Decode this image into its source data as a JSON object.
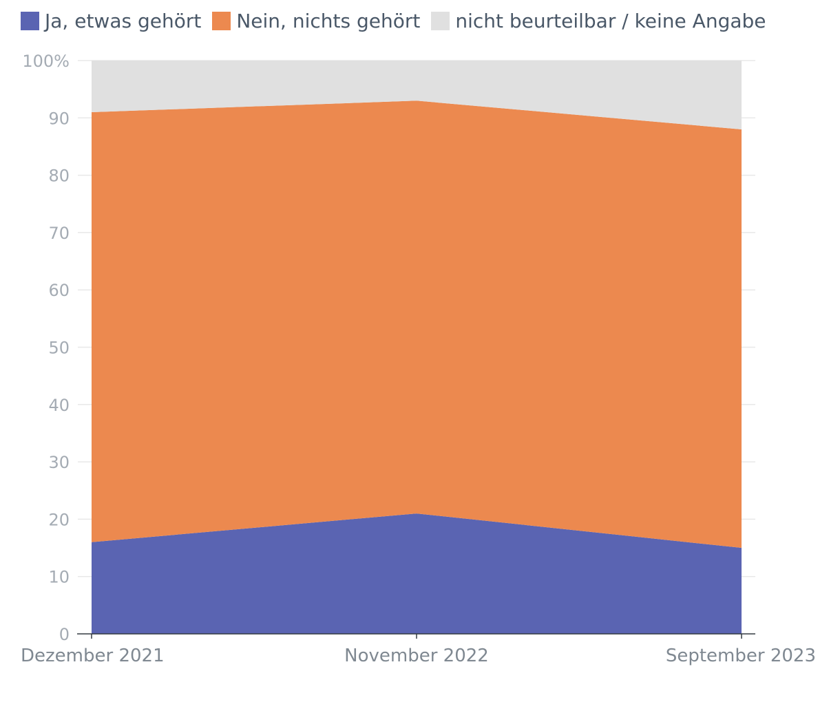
{
  "chart_data": {
    "type": "area",
    "stacking": "percent",
    "categories": [
      "Dezember 2021",
      "November 2022",
      "September 2023"
    ],
    "series": [
      {
        "name": "Ja, etwas gehört",
        "color": "#5a64b2",
        "values": [
          16,
          21,
          15
        ]
      },
      {
        "name": "Nein, nichts gehört",
        "color": "#ec894f",
        "values": [
          75,
          72,
          73
        ]
      },
      {
        "name": "nicht beurteilbar / keine Angabe",
        "color": "#e0e0e0",
        "values": [
          9,
          7,
          12
        ]
      }
    ],
    "y_ticks": [
      "0",
      "10",
      "20",
      "30",
      "40",
      "50",
      "60",
      "70",
      "80",
      "90",
      "100%"
    ],
    "ylim": [
      0,
      100
    ],
    "grid": true,
    "legend_position": "top-left"
  }
}
